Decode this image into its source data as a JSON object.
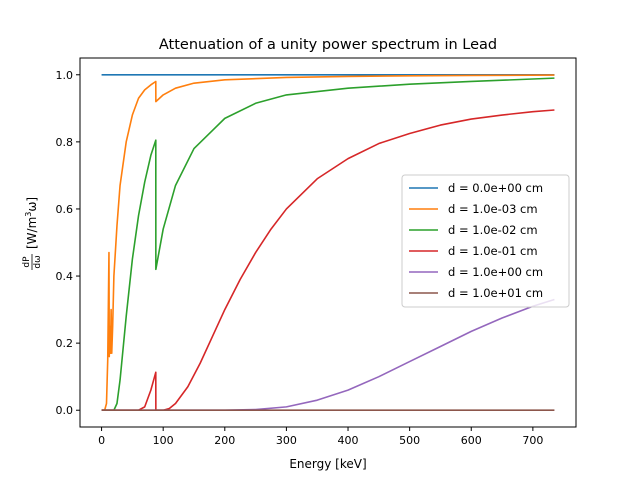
{
  "chart_data": {
    "type": "line",
    "title": "Attenuation of a unity power spectrum in Lead",
    "xlabel": "Energy [keV]",
    "ylabel": "dP/dω [W/m³ω]",
    "ylabel_parts": {
      "num": "dP",
      "den": "dω",
      "unit_open": "[W/m",
      "unit_exp": "3",
      "unit_close": "ω]"
    },
    "xlim": [
      -35,
      770
    ],
    "ylim": [
      -0.05,
      1.05
    ],
    "xticks": [
      0,
      100,
      200,
      300,
      400,
      500,
      600,
      700
    ],
    "yticks": [
      0.0,
      0.2,
      0.4,
      0.6,
      0.8,
      1.0
    ],
    "xtick_labels": [
      "0",
      "100",
      "200",
      "300",
      "400",
      "500",
      "600",
      "700"
    ],
    "ytick_labels": [
      "0.0",
      "0.2",
      "0.4",
      "0.6",
      "0.8",
      "1.0"
    ],
    "grid": false,
    "legend_position": "center-right",
    "series": [
      {
        "name": "d = 0.0e+00 cm",
        "color": "#1f77b4",
        "points": [
          [
            0,
            1.0
          ],
          [
            735,
            1.0
          ]
        ]
      },
      {
        "name": "d = 1.0e-03 cm",
        "color": "#ff7f0e",
        "points": [
          [
            0,
            0
          ],
          [
            5,
            0.0
          ],
          [
            8,
            0.02
          ],
          [
            10,
            0.15
          ],
          [
            12,
            0.47
          ],
          [
            12.5,
            0.16
          ],
          [
            13.5,
            0.25
          ],
          [
            14.5,
            0.17
          ],
          [
            15.5,
            0.3
          ],
          [
            16.5,
            0.17
          ],
          [
            18,
            0.25
          ],
          [
            20,
            0.4
          ],
          [
            25,
            0.55
          ],
          [
            30,
            0.67
          ],
          [
            40,
            0.8
          ],
          [
            50,
            0.88
          ],
          [
            60,
            0.93
          ],
          [
            70,
            0.955
          ],
          [
            80,
            0.97
          ],
          [
            88,
            0.98
          ],
          [
            88.1,
            0.92
          ],
          [
            100,
            0.94
          ],
          [
            120,
            0.96
          ],
          [
            150,
            0.975
          ],
          [
            200,
            0.985
          ],
          [
            300,
            0.992
          ],
          [
            400,
            0.995
          ],
          [
            500,
            0.997
          ],
          [
            600,
            0.998
          ],
          [
            735,
            0.999
          ]
        ]
      },
      {
        "name": "d = 1.0e-02 cm",
        "color": "#2ca02c",
        "points": [
          [
            0,
            0
          ],
          [
            20,
            0.0
          ],
          [
            25,
            0.02
          ],
          [
            30,
            0.09
          ],
          [
            40,
            0.28
          ],
          [
            50,
            0.45
          ],
          [
            60,
            0.58
          ],
          [
            70,
            0.68
          ],
          [
            80,
            0.76
          ],
          [
            88,
            0.805
          ],
          [
            88.1,
            0.42
          ],
          [
            100,
            0.54
          ],
          [
            120,
            0.67
          ],
          [
            150,
            0.78
          ],
          [
            200,
            0.87
          ],
          [
            250,
            0.915
          ],
          [
            300,
            0.94
          ],
          [
            400,
            0.96
          ],
          [
            500,
            0.972
          ],
          [
            600,
            0.98
          ],
          [
            735,
            0.99
          ]
        ]
      },
      {
        "name": "d = 1.0e-01 cm",
        "color": "#d62728",
        "points": [
          [
            0,
            0
          ],
          [
            60,
            0.0
          ],
          [
            70,
            0.01
          ],
          [
            80,
            0.06
          ],
          [
            88,
            0.113
          ],
          [
            88.1,
            0.0
          ],
          [
            100,
            0.0
          ],
          [
            110,
            0.005
          ],
          [
            120,
            0.02
          ],
          [
            140,
            0.07
          ],
          [
            160,
            0.14
          ],
          [
            180,
            0.22
          ],
          [
            200,
            0.3
          ],
          [
            225,
            0.39
          ],
          [
            250,
            0.47
          ],
          [
            275,
            0.54
          ],
          [
            300,
            0.6
          ],
          [
            350,
            0.69
          ],
          [
            400,
            0.75
          ],
          [
            450,
            0.795
          ],
          [
            500,
            0.825
          ],
          [
            550,
            0.85
          ],
          [
            600,
            0.868
          ],
          [
            650,
            0.88
          ],
          [
            700,
            0.89
          ],
          [
            735,
            0.895
          ]
        ]
      },
      {
        "name": "d = 1.0e+00 cm",
        "color": "#9467bd",
        "points": [
          [
            0,
            0
          ],
          [
            200,
            0.0
          ],
          [
            250,
            0.002
          ],
          [
            300,
            0.01
          ],
          [
            350,
            0.03
          ],
          [
            400,
            0.06
          ],
          [
            450,
            0.1
          ],
          [
            500,
            0.145
          ],
          [
            550,
            0.19
          ],
          [
            600,
            0.235
          ],
          [
            650,
            0.275
          ],
          [
            700,
            0.31
          ],
          [
            735,
            0.33
          ]
        ]
      },
      {
        "name": "d = 1.0e+01 cm",
        "color": "#8c564b",
        "points": [
          [
            0,
            0
          ],
          [
            735,
            0
          ]
        ]
      }
    ]
  }
}
